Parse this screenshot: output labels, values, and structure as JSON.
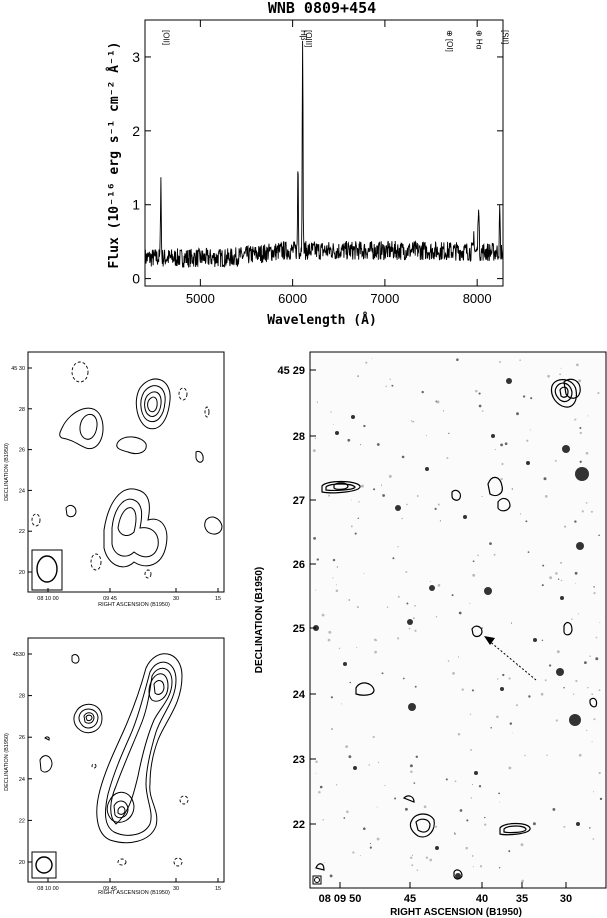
{
  "spectrum": {
    "title": "WNB 0809+454",
    "xlabel": "Wavelength (Å)",
    "ylabel": "Flux (10⁻¹⁶ erg s⁻¹ cm⁻² Å⁻¹)",
    "xticks": [
      5000,
      6000,
      7000,
      8000
    ],
    "yticks": [
      0,
      1,
      2,
      3
    ],
    "xlim": [
      4400,
      8280
    ],
    "ylim": [
      -0.1,
      3.5
    ],
    "lines": [
      {
        "label": "[OII]",
        "x": 4570
      },
      {
        "label": "Hβ",
        "x": 6060
      },
      {
        "label": "[OIII]",
        "x": 6110
      },
      {
        "label": "⊕ [OI]",
        "x": 7640
      },
      {
        "label": "⊕ Hα",
        "x": 7960
      },
      {
        "label": "[SII]",
        "x": 8240
      }
    ]
  },
  "radio_map_top": {
    "ylabel": "DECLINATION (B1950)",
    "xlabel": "RIGHT ASCENSION (B1950)",
    "yticks": [
      "45 30",
      "28",
      "26",
      "24",
      "22",
      "20"
    ],
    "xticks": [
      "08 10 00",
      "09 45",
      "30",
      "15"
    ]
  },
  "radio_map_bottom": {
    "ylabel": "DECLINATION (B1950)",
    "xlabel": "RIGHT ASCENSION (B1950)",
    "yticks": [
      "4530",
      "28",
      "26",
      "24",
      "22",
      "20"
    ],
    "xticks": [
      "08 10 00",
      "09 45",
      "30",
      "15"
    ]
  },
  "optical_field": {
    "ylabel": "DECLINATION (B1950)",
    "xlabel": "RIGHT ASCENSION (B1950)",
    "yticks": [
      "45 29",
      "28",
      "27",
      "26",
      "25",
      "24",
      "23",
      "22"
    ],
    "xticks": [
      "08 09 50",
      "45",
      "40",
      "35",
      "30"
    ]
  }
}
